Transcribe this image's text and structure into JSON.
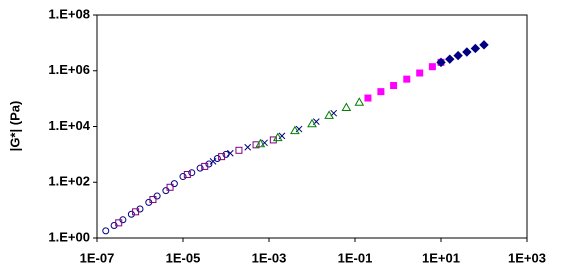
{
  "chart_data": {
    "type": "scatter",
    "y_label": "|G*| (Pa)",
    "xlog": true,
    "ylog": true,
    "grid": false,
    "xlim": [
      1e-07,
      1000
    ],
    "ylim": [
      1,
      100000000
    ],
    "xticks": [
      {
        "value": 1e-07,
        "label": "1E-07"
      },
      {
        "value": 1e-05,
        "label": "1E-05"
      },
      {
        "value": 0.001,
        "label": "1E-03"
      },
      {
        "value": 0.1,
        "label": "1E-01"
      },
      {
        "value": 10,
        "label": "1E+01"
      },
      {
        "value": 1000,
        "label": "1E+03"
      }
    ],
    "yticks": [
      {
        "value": 1,
        "label": "1.E+00"
      },
      {
        "value": 100,
        "label": "1.E+02"
      },
      {
        "value": 10000,
        "label": "1.E+04"
      },
      {
        "value": 1000000,
        "label": "1.E+06"
      },
      {
        "value": 100000000,
        "label": "1.E+08"
      }
    ],
    "series": [
      {
        "color": "#000080",
        "marker": "circle",
        "filled": false,
        "x": [
          1.6e-07,
          2.5e-07,
          4e-07,
          6.3e-07,
          1e-06,
          1.6e-06,
          2.5e-06,
          4e-06,
          6.3e-06,
          1e-05,
          1.6e-05,
          2.5e-05,
          4e-05,
          6.3e-05,
          0.0001
        ],
        "values": [
          1.8,
          2.8,
          4.5,
          7.1,
          11,
          19,
          32,
          50,
          89,
          160,
          220,
          320,
          450,
          710,
          1000
        ]
      },
      {
        "color": "#800080",
        "marker": "square",
        "filled": false,
        "x": [
          3.2e-07,
          7.9e-07,
          2e-06,
          5e-06,
          1.26e-05,
          3.2e-05,
          7.9e-05,
          0.0002,
          0.0005,
          0.00126
        ],
        "values": [
          3.5,
          8.7,
          24,
          66,
          190,
          370,
          830,
          1400,
          2200,
          3300
        ]
      },
      {
        "color": "#000080",
        "marker": "cross",
        "filled": false,
        "x": [
          5e-05,
          0.000126,
          0.00032,
          0.00079,
          0.002,
          0.005,
          0.0126,
          0.032
        ],
        "values": [
          560,
          1100,
          1800,
          2600,
          4600,
          8100,
          15000,
          30000
        ]
      },
      {
        "color": "#008000",
        "marker": "triangle",
        "filled": false,
        "x": [
          0.00063,
          0.0016,
          0.004,
          0.01,
          0.025,
          0.063,
          0.126
        ],
        "values": [
          2400,
          4000,
          7100,
          12600,
          25000,
          48000,
          74000
        ]
      },
      {
        "color": "#ff00ff",
        "marker": "square",
        "filled": true,
        "x": [
          0.2,
          0.4,
          0.79,
          1.6,
          3.2,
          6.3,
          10
        ],
        "values": [
          105000,
          178000,
          295000,
          500000,
          830000,
          1400000,
          2000000
        ]
      },
      {
        "color": "#000080",
        "marker": "diamond",
        "filled": true,
        "x": [
          10,
          16,
          25,
          40,
          63,
          100
        ],
        "values": [
          2000000,
          2600000,
          3500000,
          4700000,
          6300000,
          8500000
        ]
      }
    ]
  }
}
